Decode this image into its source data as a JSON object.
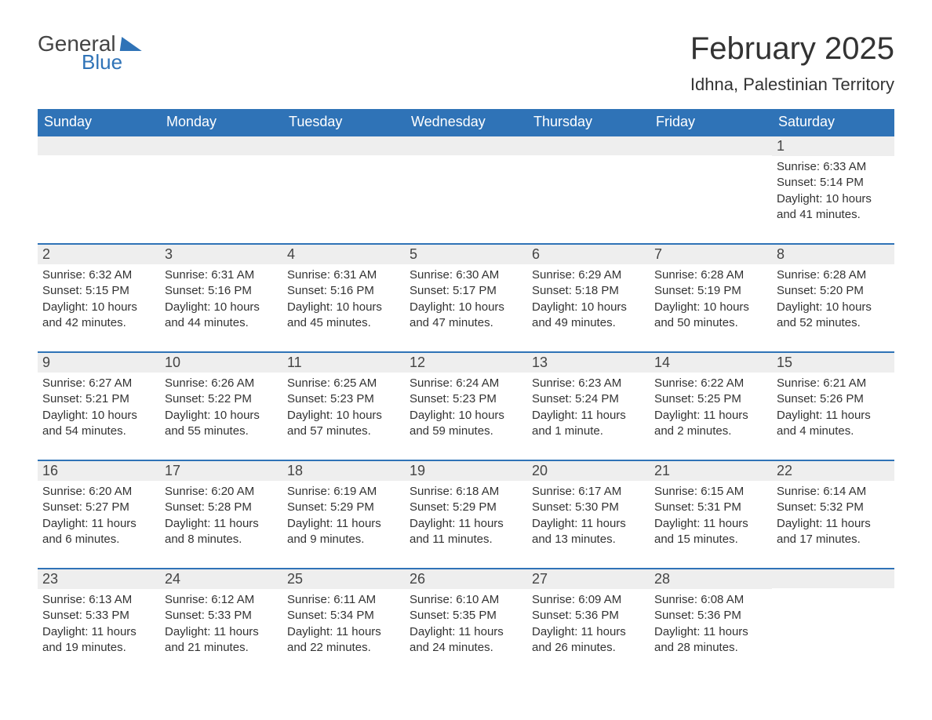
{
  "brand": {
    "part1": "General",
    "part2": "Blue"
  },
  "title": "February 2025",
  "location": "Idhna, Palestinian Territory",
  "colors": {
    "header_bg": "#2f73b7",
    "header_text": "#ffffff",
    "band_bg": "#eeeeee",
    "divider": "#2f73b7",
    "body_text": "#333333",
    "logo_blue": "#2f73b7"
  },
  "fonts": {
    "title_size_pt": 30,
    "location_size_pt": 17,
    "dayhdr_size_pt": 14,
    "daynum_size_pt": 14,
    "body_size_pt": 11
  },
  "day_headers": [
    "Sunday",
    "Monday",
    "Tuesday",
    "Wednesday",
    "Thursday",
    "Friday",
    "Saturday"
  ],
  "labels": {
    "sunrise": "Sunrise: ",
    "sunset": "Sunset: ",
    "daylight": "Daylight: "
  },
  "weeks": [
    [
      null,
      null,
      null,
      null,
      null,
      null,
      {
        "n": "1",
        "sunrise": "6:33 AM",
        "sunset": "5:14 PM",
        "daylight": "10 hours and 41 minutes."
      }
    ],
    [
      {
        "n": "2",
        "sunrise": "6:32 AM",
        "sunset": "5:15 PM",
        "daylight": "10 hours and 42 minutes."
      },
      {
        "n": "3",
        "sunrise": "6:31 AM",
        "sunset": "5:16 PM",
        "daylight": "10 hours and 44 minutes."
      },
      {
        "n": "4",
        "sunrise": "6:31 AM",
        "sunset": "5:16 PM",
        "daylight": "10 hours and 45 minutes."
      },
      {
        "n": "5",
        "sunrise": "6:30 AM",
        "sunset": "5:17 PM",
        "daylight": "10 hours and 47 minutes."
      },
      {
        "n": "6",
        "sunrise": "6:29 AM",
        "sunset": "5:18 PM",
        "daylight": "10 hours and 49 minutes."
      },
      {
        "n": "7",
        "sunrise": "6:28 AM",
        "sunset": "5:19 PM",
        "daylight": "10 hours and 50 minutes."
      },
      {
        "n": "8",
        "sunrise": "6:28 AM",
        "sunset": "5:20 PM",
        "daylight": "10 hours and 52 minutes."
      }
    ],
    [
      {
        "n": "9",
        "sunrise": "6:27 AM",
        "sunset": "5:21 PM",
        "daylight": "10 hours and 54 minutes."
      },
      {
        "n": "10",
        "sunrise": "6:26 AM",
        "sunset": "5:22 PM",
        "daylight": "10 hours and 55 minutes."
      },
      {
        "n": "11",
        "sunrise": "6:25 AM",
        "sunset": "5:23 PM",
        "daylight": "10 hours and 57 minutes."
      },
      {
        "n": "12",
        "sunrise": "6:24 AM",
        "sunset": "5:23 PM",
        "daylight": "10 hours and 59 minutes."
      },
      {
        "n": "13",
        "sunrise": "6:23 AM",
        "sunset": "5:24 PM",
        "daylight": "11 hours and 1 minute."
      },
      {
        "n": "14",
        "sunrise": "6:22 AM",
        "sunset": "5:25 PM",
        "daylight": "11 hours and 2 minutes."
      },
      {
        "n": "15",
        "sunrise": "6:21 AM",
        "sunset": "5:26 PM",
        "daylight": "11 hours and 4 minutes."
      }
    ],
    [
      {
        "n": "16",
        "sunrise": "6:20 AM",
        "sunset": "5:27 PM",
        "daylight": "11 hours and 6 minutes."
      },
      {
        "n": "17",
        "sunrise": "6:20 AM",
        "sunset": "5:28 PM",
        "daylight": "11 hours and 8 minutes."
      },
      {
        "n": "18",
        "sunrise": "6:19 AM",
        "sunset": "5:29 PM",
        "daylight": "11 hours and 9 minutes."
      },
      {
        "n": "19",
        "sunrise": "6:18 AM",
        "sunset": "5:29 PM",
        "daylight": "11 hours and 11 minutes."
      },
      {
        "n": "20",
        "sunrise": "6:17 AM",
        "sunset": "5:30 PM",
        "daylight": "11 hours and 13 minutes."
      },
      {
        "n": "21",
        "sunrise": "6:15 AM",
        "sunset": "5:31 PM",
        "daylight": "11 hours and 15 minutes."
      },
      {
        "n": "22",
        "sunrise": "6:14 AM",
        "sunset": "5:32 PM",
        "daylight": "11 hours and 17 minutes."
      }
    ],
    [
      {
        "n": "23",
        "sunrise": "6:13 AM",
        "sunset": "5:33 PM",
        "daylight": "11 hours and 19 minutes."
      },
      {
        "n": "24",
        "sunrise": "6:12 AM",
        "sunset": "5:33 PM",
        "daylight": "11 hours and 21 minutes."
      },
      {
        "n": "25",
        "sunrise": "6:11 AM",
        "sunset": "5:34 PM",
        "daylight": "11 hours and 22 minutes."
      },
      {
        "n": "26",
        "sunrise": "6:10 AM",
        "sunset": "5:35 PM",
        "daylight": "11 hours and 24 minutes."
      },
      {
        "n": "27",
        "sunrise": "6:09 AM",
        "sunset": "5:36 PM",
        "daylight": "11 hours and 26 minutes."
      },
      {
        "n": "28",
        "sunrise": "6:08 AM",
        "sunset": "5:36 PM",
        "daylight": "11 hours and 28 minutes."
      },
      null
    ]
  ]
}
